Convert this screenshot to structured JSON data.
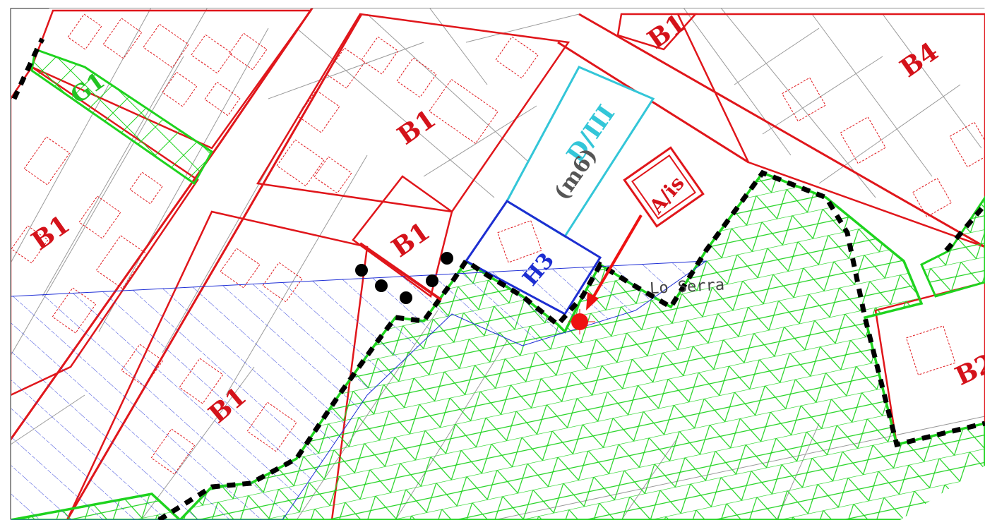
{
  "map": {
    "zone_labels": {
      "b1_top": "B1",
      "b1_center": "B1",
      "b1_left": "B1",
      "b1_small": "B1",
      "b1_bottom": "B1",
      "b4": "B4",
      "b2": "B2",
      "g1": "G1",
      "d3": "D/III",
      "m6": "(m6)",
      "h3": "H3",
      "a_is": "A/is"
    },
    "place_name": "Lo Serra",
    "colors": {
      "zone_boundary": "#e0161b",
      "green_area": "#1ed31e",
      "hatch_blue": "#1f2fd6",
      "cyan_zone": "#33c6d8",
      "text_red": "#d4121a",
      "text_blue": "#1d2ed1",
      "text_green": "#22c322",
      "text_grey": "#555555",
      "parcel_lines": "#9a9a9a",
      "marker": "#ee1111"
    },
    "marker": {
      "icon": "location-dot-icon",
      "pointer": "arrow-icon"
    }
  }
}
